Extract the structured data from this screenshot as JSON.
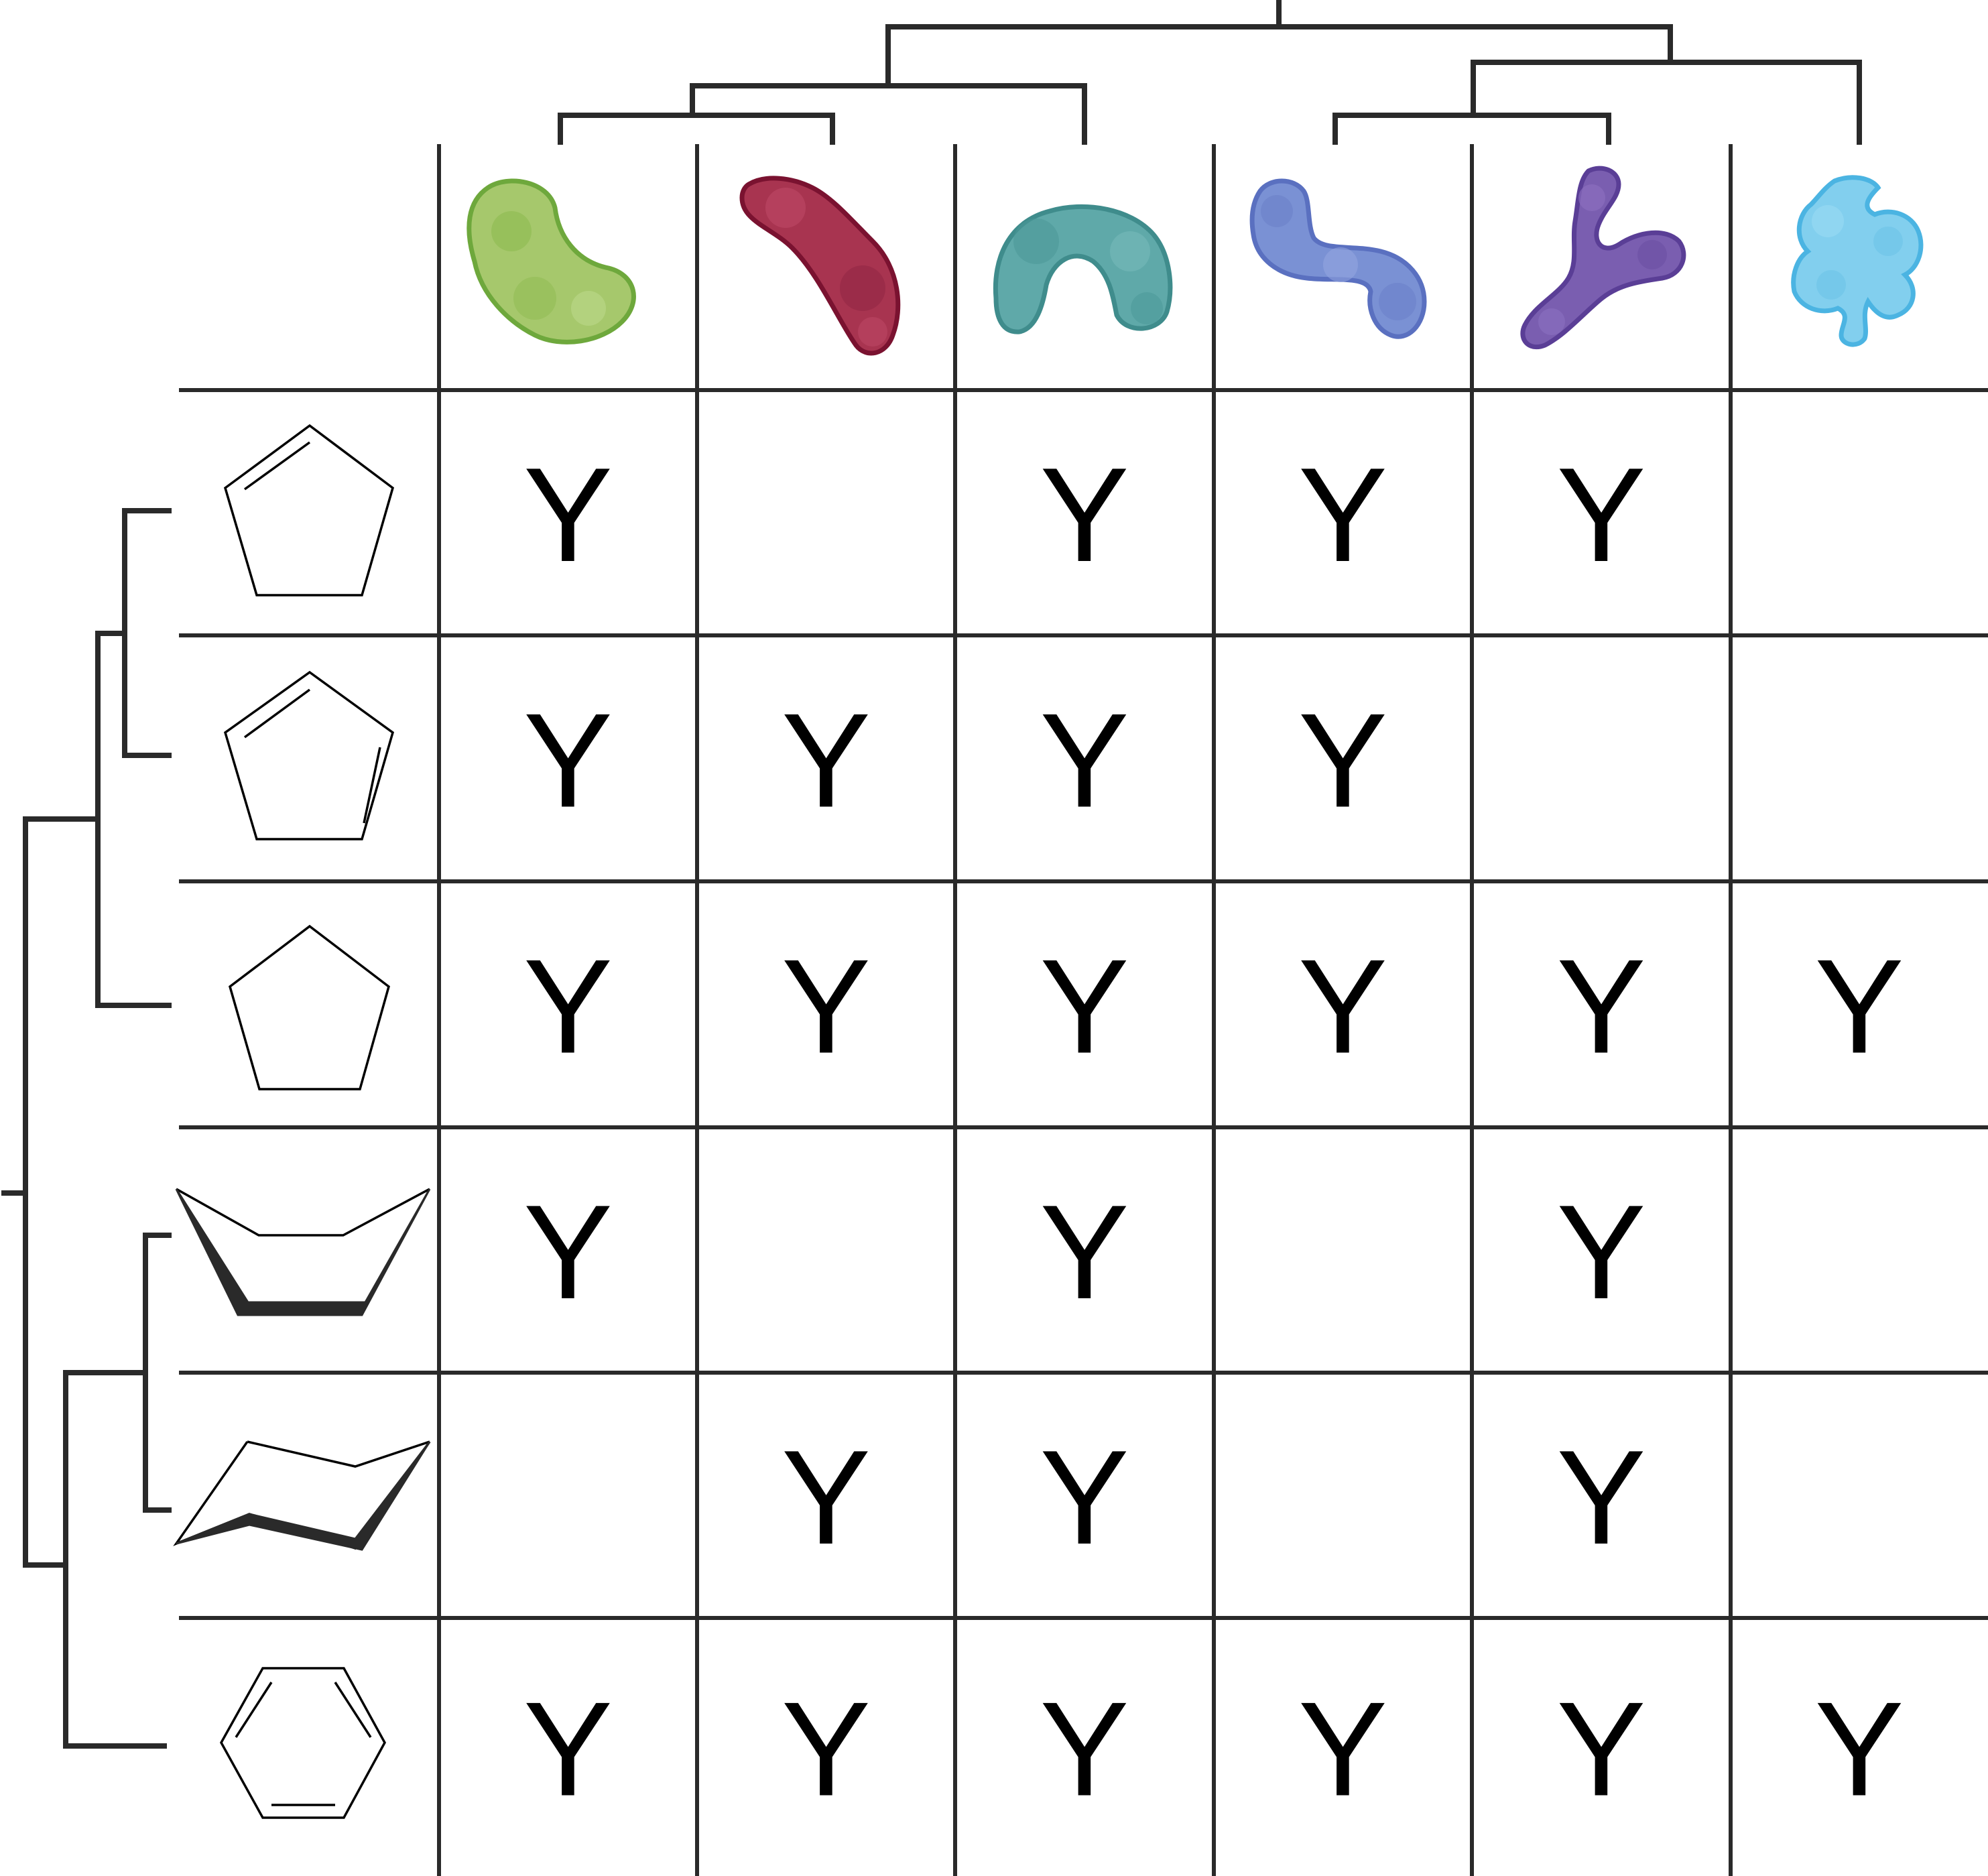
{
  "matrix": {
    "mark_symbol": "Y",
    "cells": [
      [
        1,
        0,
        1,
        1,
        1,
        0
      ],
      [
        1,
        1,
        1,
        1,
        0,
        0
      ],
      [
        1,
        1,
        1,
        1,
        1,
        1
      ],
      [
        1,
        0,
        1,
        0,
        1,
        0
      ],
      [
        0,
        1,
        1,
        0,
        1,
        0
      ],
      [
        1,
        1,
        1,
        1,
        1,
        1
      ]
    ]
  },
  "columns": [
    {
      "icon": "green-l-shaped-protein-icon",
      "fill": "#a6c86c",
      "stroke": "#6ea83c"
    },
    {
      "icon": "crimson-bean-protein-icon",
      "fill": "#a83450",
      "stroke": "#7a1230"
    },
    {
      "icon": "teal-arch-protein-icon",
      "fill": "#5fa9a9",
      "stroke": "#3f8c8c"
    },
    {
      "icon": "blue-s-shaped-protein-icon",
      "fill": "#7a91d4",
      "stroke": "#5a70c0"
    },
    {
      "icon": "purple-y-shaped-protein-icon",
      "fill": "#7a5eb0",
      "stroke": "#5a3e96"
    },
    {
      "icon": "sky-blue-lobed-protein-icon",
      "fill": "#82cfee",
      "stroke": "#4bb4e2"
    }
  ],
  "rows": [
    {
      "icon": "cyclopentene-icon"
    },
    {
      "icon": "cyclopentadiene-icon"
    },
    {
      "icon": "cyclopentane-icon"
    },
    {
      "icon": "cyclohexane-boat-icon"
    },
    {
      "icon": "cyclohexane-chair-icon"
    },
    {
      "icon": "benzene-icon"
    }
  ],
  "colors": {
    "line": "#2a2a2a",
    "text": "#000000",
    "background": "#ffffff"
  }
}
